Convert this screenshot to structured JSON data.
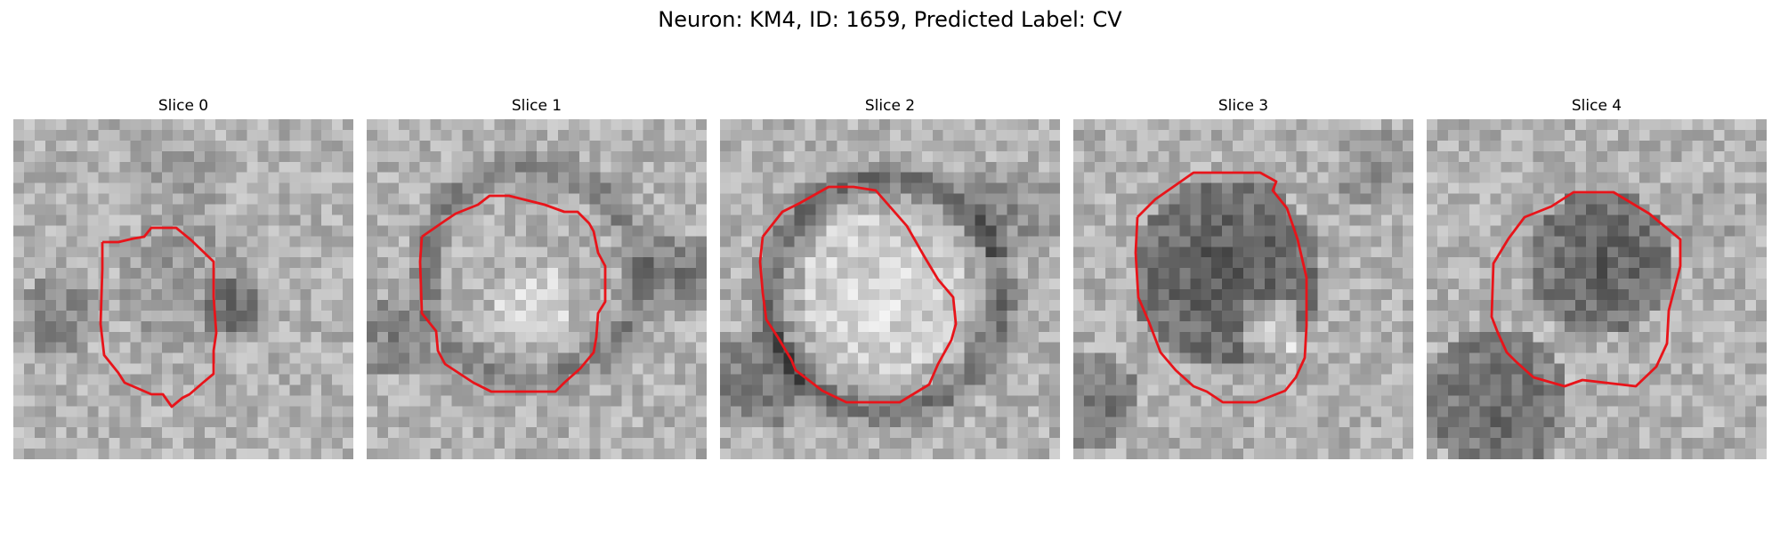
{
  "figure": {
    "title": "Neuron: KM4, ID: 1659, Predicted Label: CV"
  },
  "panels": [
    {
      "title": "Slice 0",
      "contour_color": "#e8141a"
    },
    {
      "title": "Slice 1",
      "contour_color": "#e8141a"
    },
    {
      "title": "Slice 2",
      "contour_color": "#e8141a"
    },
    {
      "title": "Slice 3",
      "contour_color": "#e8141a"
    },
    {
      "title": "Slice 4",
      "contour_color": "#e8141a"
    }
  ]
}
